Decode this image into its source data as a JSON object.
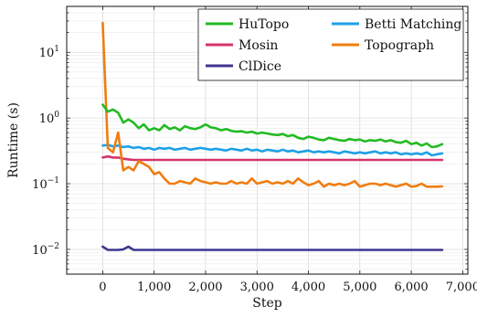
{
  "chart_data": {
    "type": "line",
    "xlabel": "Step",
    "ylabel": "Runtime (s)",
    "xlim": [
      -700,
      7100
    ],
    "ylim": [
      0.0042,
      50
    ],
    "y_scale": "log",
    "grid": true,
    "legend_position": "top-right",
    "x_ticks": [
      0,
      1000,
      2000,
      3000,
      4000,
      5000,
      6000,
      7000
    ],
    "x_tick_labels": [
      "0",
      "1,000",
      "2,000",
      "3,000",
      "4,000",
      "5,000",
      "6,000",
      "7,000"
    ],
    "y_ticks": [
      0.01,
      0.1,
      1,
      10
    ],
    "y_tick_labels": [
      {
        "base": "10",
        "exp": "−2"
      },
      {
        "base": "10",
        "exp": "−1"
      },
      {
        "base": "10",
        "exp": "0"
      },
      {
        "base": "10",
        "exp": "1"
      }
    ],
    "series": [
      {
        "name": "HuTopo",
        "color": "#22bb22",
        "x": [
          0,
          100,
          200,
          300,
          400,
          500,
          600,
          700,
          800,
          900,
          1000,
          1100,
          1200,
          1300,
          1400,
          1500,
          1600,
          1700,
          1800,
          1900,
          2000,
          2100,
          2200,
          2300,
          2400,
          2500,
          2600,
          2700,
          2800,
          2900,
          3000,
          3100,
          3200,
          3300,
          3400,
          3500,
          3600,
          3700,
          3800,
          3900,
          4000,
          4100,
          4200,
          4300,
          4400,
          4500,
          4600,
          4700,
          4800,
          4900,
          5000,
          5100,
          5200,
          5300,
          5400,
          5500,
          5600,
          5700,
          5800,
          5900,
          6000,
          6100,
          6200,
          6300,
          6400,
          6500,
          6600
        ],
        "y": [
          1.6,
          1.25,
          1.35,
          1.2,
          0.85,
          0.95,
          0.85,
          0.7,
          0.8,
          0.65,
          0.7,
          0.65,
          0.78,
          0.68,
          0.72,
          0.65,
          0.75,
          0.7,
          0.68,
          0.72,
          0.8,
          0.72,
          0.7,
          0.65,
          0.68,
          0.64,
          0.62,
          0.63,
          0.6,
          0.62,
          0.58,
          0.6,
          0.58,
          0.56,
          0.55,
          0.57,
          0.53,
          0.55,
          0.5,
          0.48,
          0.52,
          0.5,
          0.47,
          0.46,
          0.5,
          0.48,
          0.46,
          0.45,
          0.48,
          0.46,
          0.47,
          0.44,
          0.46,
          0.45,
          0.47,
          0.44,
          0.46,
          0.43,
          0.42,
          0.45,
          0.4,
          0.42,
          0.38,
          0.41,
          0.36,
          0.37,
          0.4
        ]
      },
      {
        "name": "Betti Matching",
        "color": "#1ea0e6",
        "x": [
          0,
          100,
          200,
          300,
          400,
          500,
          600,
          700,
          800,
          900,
          1000,
          1100,
          1200,
          1300,
          1400,
          1500,
          1600,
          1700,
          1800,
          1900,
          2000,
          2100,
          2200,
          2300,
          2400,
          2500,
          2600,
          2700,
          2800,
          2900,
          3000,
          3100,
          3200,
          3300,
          3400,
          3500,
          3600,
          3700,
          3800,
          3900,
          4000,
          4100,
          4200,
          4300,
          4400,
          4500,
          4600,
          4700,
          4800,
          4900,
          5000,
          5100,
          5200,
          5300,
          5400,
          5500,
          5600,
          5700,
          5800,
          5900,
          6000,
          6100,
          6200,
          6300,
          6400,
          6500,
          6600
        ],
        "y": [
          0.38,
          0.39,
          0.37,
          0.38,
          0.36,
          0.37,
          0.35,
          0.36,
          0.34,
          0.35,
          0.33,
          0.35,
          0.34,
          0.35,
          0.33,
          0.34,
          0.35,
          0.33,
          0.34,
          0.35,
          0.34,
          0.33,
          0.34,
          0.33,
          0.32,
          0.34,
          0.33,
          0.32,
          0.34,
          0.32,
          0.33,
          0.31,
          0.33,
          0.32,
          0.31,
          0.33,
          0.31,
          0.32,
          0.3,
          0.31,
          0.32,
          0.3,
          0.31,
          0.3,
          0.31,
          0.3,
          0.29,
          0.31,
          0.3,
          0.29,
          0.3,
          0.29,
          0.3,
          0.31,
          0.29,
          0.3,
          0.29,
          0.3,
          0.28,
          0.29,
          0.28,
          0.29,
          0.28,
          0.3,
          0.27,
          0.28,
          0.29
        ]
      },
      {
        "name": "Mosin",
        "color": "#d6336c",
        "x": [
          0,
          100,
          200,
          300,
          400,
          500,
          600,
          700,
          800,
          900,
          1000,
          1500,
          2000,
          2500,
          3000,
          3500,
          4000,
          4500,
          5000,
          5500,
          6000,
          6600
        ],
        "y": [
          0.25,
          0.26,
          0.25,
          0.25,
          0.24,
          0.235,
          0.23,
          0.23,
          0.23,
          0.23,
          0.23,
          0.23,
          0.23,
          0.23,
          0.23,
          0.23,
          0.23,
          0.23,
          0.23,
          0.23,
          0.23,
          0.23
        ]
      },
      {
        "name": "Topograph",
        "color": "#f07d10",
        "x": [
          0,
          100,
          200,
          300,
          400,
          500,
          600,
          700,
          800,
          900,
          1000,
          1100,
          1200,
          1300,
          1400,
          1500,
          1600,
          1700,
          1800,
          1900,
          2000,
          2100,
          2200,
          2300,
          2400,
          2500,
          2600,
          2700,
          2800,
          2900,
          3000,
          3100,
          3200,
          3300,
          3400,
          3500,
          3600,
          3700,
          3800,
          3900,
          4000,
          4100,
          4200,
          4300,
          4400,
          4500,
          4600,
          4700,
          4800,
          4900,
          5000,
          5100,
          5200,
          5300,
          5400,
          5500,
          5600,
          5700,
          5800,
          5900,
          6000,
          6100,
          6200,
          6300,
          6400,
          6500,
          6600
        ],
        "y": [
          28,
          0.35,
          0.3,
          0.6,
          0.16,
          0.18,
          0.16,
          0.22,
          0.2,
          0.18,
          0.14,
          0.15,
          0.12,
          0.1,
          0.1,
          0.11,
          0.105,
          0.1,
          0.12,
          0.11,
          0.105,
          0.1,
          0.105,
          0.1,
          0.1,
          0.11,
          0.1,
          0.105,
          0.1,
          0.12,
          0.1,
          0.105,
          0.11,
          0.1,
          0.105,
          0.1,
          0.11,
          0.1,
          0.12,
          0.105,
          0.095,
          0.1,
          0.11,
          0.09,
          0.1,
          0.095,
          0.1,
          0.095,
          0.1,
          0.11,
          0.09,
          0.095,
          0.1,
          0.1,
          0.095,
          0.1,
          0.095,
          0.09,
          0.095,
          0.1,
          0.09,
          0.092,
          0.1,
          0.09,
          0.09,
          0.09,
          0.091
        ]
      },
      {
        "name": "ClDice",
        "color": "#3f3590",
        "x": [
          0,
          100,
          200,
          300,
          400,
          500,
          600,
          700,
          1000,
          2000,
          3000,
          4000,
          5000,
          6000,
          6600
        ],
        "y": [
          0.011,
          0.0098,
          0.0098,
          0.0098,
          0.01,
          0.011,
          0.0098,
          0.0098,
          0.0098,
          0.0098,
          0.0098,
          0.0098,
          0.0098,
          0.0098,
          0.0098
        ]
      }
    ]
  }
}
